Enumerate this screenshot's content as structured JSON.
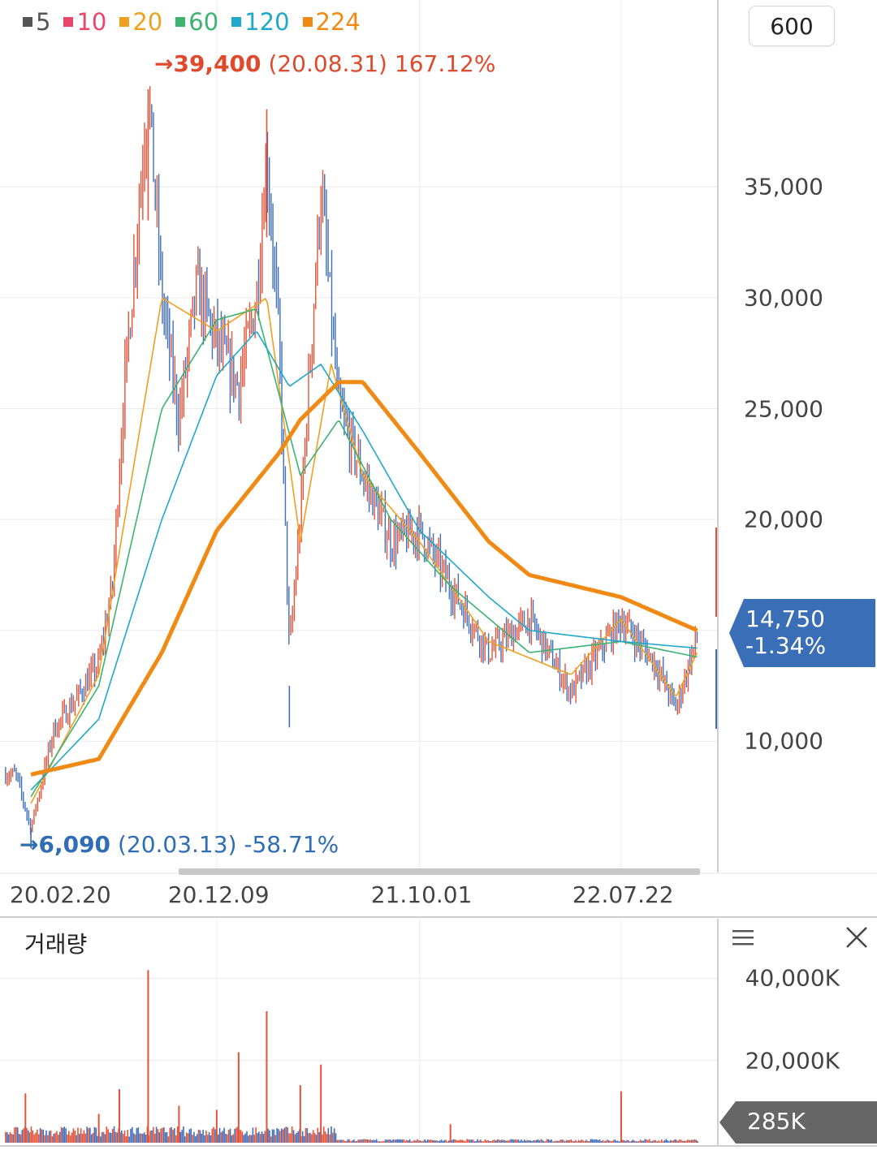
{
  "legend": [
    {
      "label": "5",
      "color": "#555555"
    },
    {
      "label": "10",
      "color": "#e8466a"
    },
    {
      "label": "20",
      "color": "#f0a020"
    },
    {
      "label": "60",
      "color": "#3cb371"
    },
    {
      "label": "120",
      "color": "#1fa8c9"
    },
    {
      "label": "224",
      "color": "#f08a14"
    }
  ],
  "period_button": "600",
  "annotations": {
    "high": {
      "arrow": "→",
      "value": "39,400",
      "detail": "(20.08.31) 167.12%",
      "color": "#e04a2c"
    },
    "low": {
      "arrow": "→",
      "value": "6,090",
      "detail": "(20.03.13) -58.71%",
      "color": "#2f6db5"
    }
  },
  "price_tag": {
    "price": "14,750",
    "change": "-1.34%",
    "color": "#3a6fb8"
  },
  "volume_panel": {
    "title": "거래량",
    "current": "285K",
    "tag_color": "#666666"
  },
  "chart_data": [
    {
      "type": "candlestick",
      "title": "",
      "xlabel": "",
      "ylabel": "",
      "ylim": [
        5000,
        40500
      ],
      "y_ticks": [
        10000,
        15000,
        20000,
        25000,
        30000,
        35000
      ],
      "y_tick_labels": [
        "10,000",
        "",
        "20,000",
        "25,000",
        "30,000",
        "35,000"
      ],
      "x_tick_labels": [
        "20.02.20",
        "20.12.09",
        "21.10.01",
        "22.07.22"
      ],
      "grid": true,
      "price_key_points": [
        {
          "date": "20.02.20",
          "value": 8500
        },
        {
          "date": "20.03.13",
          "value": 6090
        },
        {
          "date": "20.04.15",
          "value": 10500
        },
        {
          "date": "20.05.20",
          "value": 12000
        },
        {
          "date": "20.06.20",
          "value": 13500
        },
        {
          "date": "20.07.10",
          "value": 17000
        },
        {
          "date": "20.07.25",
          "value": 25000
        },
        {
          "date": "20.08.31",
          "value": 39400
        },
        {
          "date": "20.09.20",
          "value": 30000
        },
        {
          "date": "20.10.15",
          "value": 24500
        },
        {
          "date": "20.11.10",
          "value": 30500
        },
        {
          "date": "20.12.09",
          "value": 28000
        },
        {
          "date": "21.01.10",
          "value": 26000
        },
        {
          "date": "21.02.05",
          "value": 30000
        },
        {
          "date": "21.02.20",
          "value": 36500
        },
        {
          "date": "21.03.10",
          "value": 28000
        },
        {
          "date": "21.03.25",
          "value": 14000
        },
        {
          "date": "21.04.10",
          "value": 20000
        },
        {
          "date": "21.05.10",
          "value": 35000
        },
        {
          "date": "21.06.05",
          "value": 25000
        },
        {
          "date": "21.07.10",
          "value": 22000
        },
        {
          "date": "21.08.20",
          "value": 19000
        },
        {
          "date": "21.10.01",
          "value": 19500
        },
        {
          "date": "21.11.15",
          "value": 17000
        },
        {
          "date": "22.01.10",
          "value": 14000
        },
        {
          "date": "22.03.10",
          "value": 15500
        },
        {
          "date": "22.05.10",
          "value": 12200
        },
        {
          "date": "22.07.22",
          "value": 15500
        },
        {
          "date": "22.09.10",
          "value": 13500
        },
        {
          "date": "22.10.10",
          "value": 11500
        },
        {
          "date": "22.11.10",
          "value": 14750
        }
      ],
      "moving_averages": [
        {
          "name": "224",
          "color": "#f08a14",
          "points": [
            {
              "date": "20.03.13",
              "value": 8500
            },
            {
              "date": "20.06.20",
              "value": 9200
            },
            {
              "date": "20.09.20",
              "value": 14000
            },
            {
              "date": "20.12.09",
              "value": 19500
            },
            {
              "date": "21.03.10",
              "value": 23000
            },
            {
              "date": "21.04.10",
              "value": 24500
            },
            {
              "date": "21.06.05",
              "value": 26200
            },
            {
              "date": "21.07.10",
              "value": 26200
            },
            {
              "date": "21.10.01",
              "value": 23000
            },
            {
              "date": "22.01.10",
              "value": 19000
            },
            {
              "date": "22.03.10",
              "value": 17500
            },
            {
              "date": "22.07.22",
              "value": 16500
            },
            {
              "date": "22.11.10",
              "value": 15000
            }
          ]
        },
        {
          "name": "120",
          "color": "#1fa8c9",
          "points": [
            {
              "date": "20.03.13",
              "value": 7800
            },
            {
              "date": "20.06.20",
              "value": 11000
            },
            {
              "date": "20.09.20",
              "value": 20000
            },
            {
              "date": "20.12.09",
              "value": 26500
            },
            {
              "date": "21.02.05",
              "value": 28500
            },
            {
              "date": "21.03.25",
              "value": 26000
            },
            {
              "date": "21.05.10",
              "value": 27000
            },
            {
              "date": "21.07.10",
              "value": 24000
            },
            {
              "date": "21.10.01",
              "value": 19500
            },
            {
              "date": "22.01.10",
              "value": 16500
            },
            {
              "date": "22.03.10",
              "value": 15000
            },
            {
              "date": "22.07.22",
              "value": 14500
            },
            {
              "date": "22.11.10",
              "value": 14200
            }
          ]
        },
        {
          "name": "60",
          "color": "#3cb371",
          "points": [
            {
              "date": "20.03.13",
              "value": 7500
            },
            {
              "date": "20.06.20",
              "value": 12500
            },
            {
              "date": "20.09.20",
              "value": 25000
            },
            {
              "date": "20.12.09",
              "value": 29000
            },
            {
              "date": "21.02.05",
              "value": 29500
            },
            {
              "date": "21.04.10",
              "value": 22000
            },
            {
              "date": "21.06.05",
              "value": 24500
            },
            {
              "date": "21.08.20",
              "value": 20000
            },
            {
              "date": "21.11.15",
              "value": 17000
            },
            {
              "date": "22.03.10",
              "value": 14000
            },
            {
              "date": "22.07.22",
              "value": 14500
            },
            {
              "date": "22.11.10",
              "value": 13800
            }
          ]
        },
        {
          "name": "20",
          "color": "#f0a020",
          "points": [
            {
              "date": "20.03.13",
              "value": 7200
            },
            {
              "date": "20.06.20",
              "value": 13000
            },
            {
              "date": "20.09.20",
              "value": 30000
            },
            {
              "date": "20.12.09",
              "value": 28500
            },
            {
              "date": "21.02.20",
              "value": 30000
            },
            {
              "date": "21.04.10",
              "value": 19000
            },
            {
              "date": "21.05.25",
              "value": 27000
            },
            {
              "date": "21.07.10",
              "value": 22000
            },
            {
              "date": "21.10.01",
              "value": 19000
            },
            {
              "date": "22.01.10",
              "value": 14500
            },
            {
              "date": "22.05.10",
              "value": 13000
            },
            {
              "date": "22.07.22",
              "value": 15500
            },
            {
              "date": "22.10.10",
              "value": 12000
            },
            {
              "date": "22.11.10",
              "value": 14000
            }
          ]
        }
      ]
    },
    {
      "type": "bar",
      "title": "거래량",
      "ylim": [
        0,
        45000
      ],
      "y_ticks": [
        20000,
        40000
      ],
      "y_tick_labels": [
        "20,000K",
        "40,000K"
      ],
      "unit": "K",
      "volume_key_points": [
        {
          "date": "20.03.05",
          "value": 12000
        },
        {
          "date": "20.06.20",
          "value": 7000
        },
        {
          "date": "20.07.20",
          "value": 13000
        },
        {
          "date": "20.08.31",
          "value": 42000
        },
        {
          "date": "20.10.15",
          "value": 9000
        },
        {
          "date": "20.12.09",
          "value": 8000
        },
        {
          "date": "21.01.10",
          "value": 22000
        },
        {
          "date": "21.02.20",
          "value": 32000
        },
        {
          "date": "21.04.10",
          "value": 14000
        },
        {
          "date": "21.05.10",
          "value": 19000
        },
        {
          "date": "21.11.15",
          "value": 4500
        },
        {
          "date": "22.07.22",
          "value": 12500
        },
        {
          "date": "22.11.10",
          "value": 285
        }
      ]
    }
  ]
}
